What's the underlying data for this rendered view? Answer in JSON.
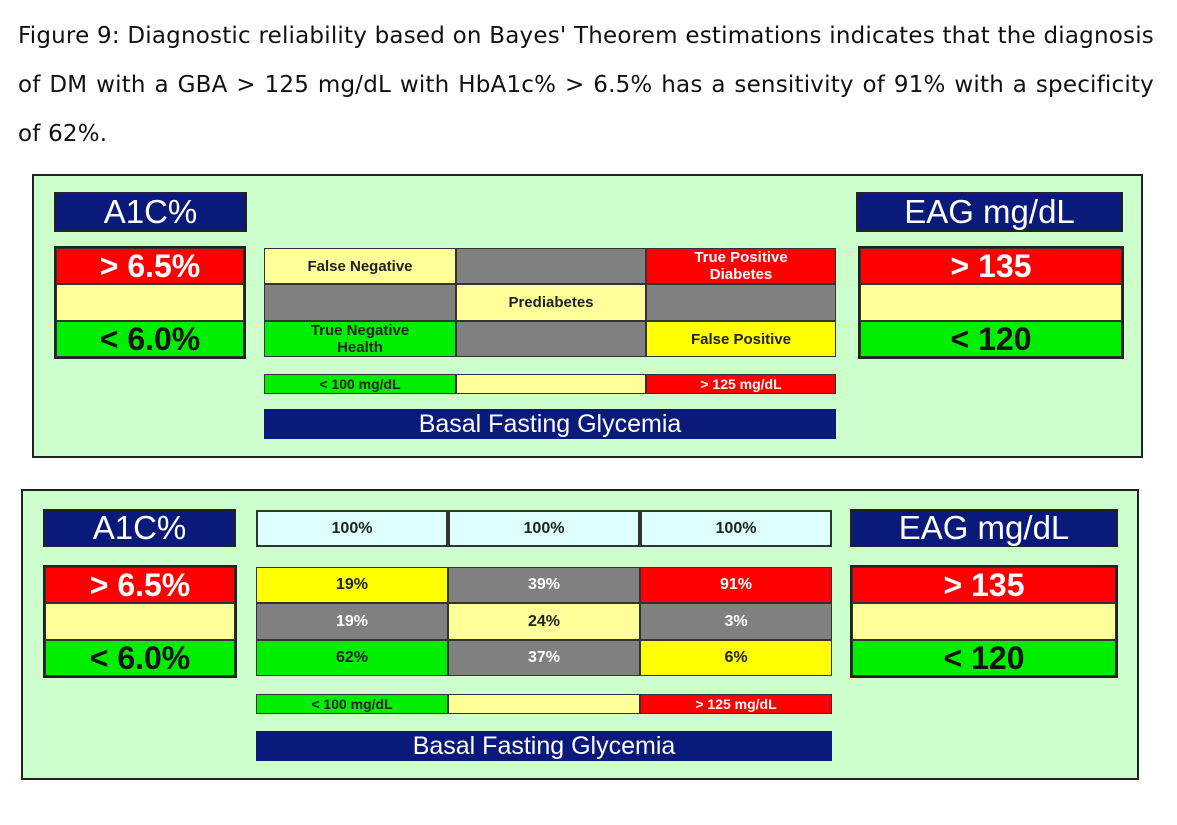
{
  "caption": "Figure 9: Diagnostic reliability based on Bayes' Theorem estimations indicates that the diagnosis of DM with a GBA > 125 mg/dL with HbA1c% > 6.5% has a sensitivity of 91% with a specificity of 62%.",
  "panel_top": {
    "left_header": "A1C%",
    "right_header": "EAG mg/dL",
    "a1c_high": "> 6.5%",
    "a1c_low": "< 6.0%",
    "eag_high": "> 135",
    "eag_low": "< 120",
    "matrix": {
      "r1c1": "False Negative",
      "r1c3": "True Positive Diabetes",
      "r2c2": "Prediabetes",
      "r3c1": "True Negative Health",
      "r3c3": "False Positive"
    },
    "bar_low": "< 100 mg/dL",
    "bar_high": "> 125 mg/dL",
    "footer": "Basal Fasting Glycemia"
  },
  "panel_bottom": {
    "left_header": "A1C%",
    "right_header": "EAG mg/dL",
    "a1c_high": "> 6.5%",
    "a1c_low": "< 6.0%",
    "eag_high": "> 135",
    "eag_low": "< 120",
    "totals": [
      "100%",
      "100%",
      "100%"
    ],
    "rows": [
      [
        "19%",
        "39%",
        "91%"
      ],
      [
        "19%",
        "24%",
        "3%"
      ],
      [
        "62%",
        "37%",
        "6%"
      ]
    ],
    "bar_low": "< 100 mg/dL",
    "bar_high": "> 125 mg/dL",
    "footer": "Basal Fasting Glycemia"
  },
  "colors": {
    "panel_bg": "#ccffcc",
    "header_navy": "#0a1a7a",
    "high_red": "#ff0000",
    "mid_yellow": "#ffff99",
    "low_green": "#00ee00",
    "neutral_gray": "#808080",
    "false_yellow": "#ffff00",
    "total_blue": "#ddffff"
  }
}
